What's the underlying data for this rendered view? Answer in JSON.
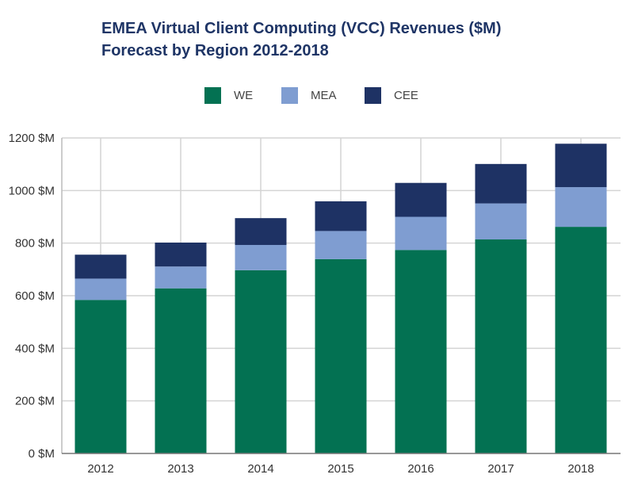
{
  "chart_data": {
    "type": "bar",
    "stacked": true,
    "title": [
      "EMEA Virtual Client Computing (VCC) Revenues ($M)",
      "Forecast by Region 2012-2018"
    ],
    "categories": [
      "2012",
      "2013",
      "2014",
      "2015",
      "2016",
      "2017",
      "2018"
    ],
    "series": [
      {
        "name": "WE",
        "color": "#037152",
        "values": [
          584,
          628,
          697,
          739,
          774,
          814,
          862
        ]
      },
      {
        "name": "MEA",
        "color": "#7f9dd1",
        "values": [
          81,
          83,
          96,
          107,
          126,
          137,
          151
        ]
      },
      {
        "name": "CEE",
        "color": "#1e3264",
        "values": [
          91,
          91,
          102,
          113,
          129,
          150,
          165
        ]
      }
    ],
    "yticks": [
      "0 $M",
      "200 $M",
      "400 $M",
      "600 $M",
      "800 $M",
      "1000 $M",
      "1200 $M"
    ],
    "ylim": [
      0,
      1200
    ],
    "grid": true,
    "legend_position": "top"
  }
}
